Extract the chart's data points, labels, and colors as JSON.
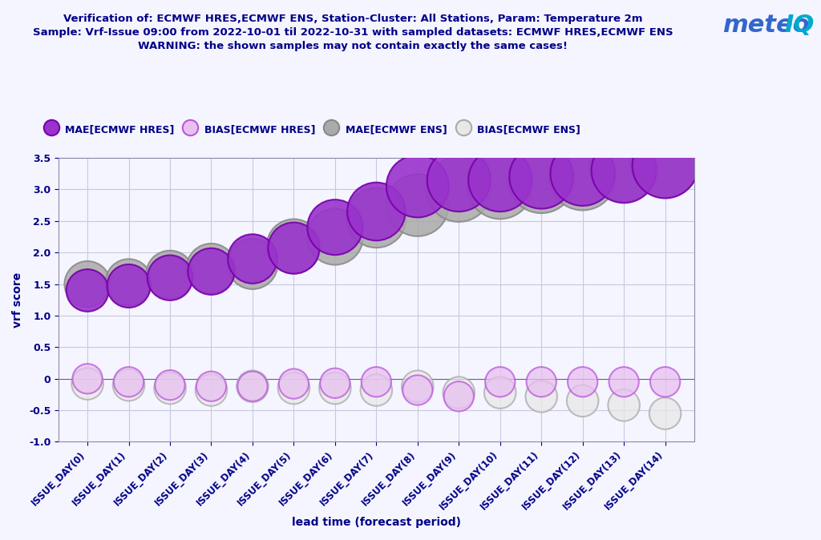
{
  "title_line1": "Verification of: ECMWF HRES,ECMWF ENS, Station-Cluster: All Stations, Param: Temperature 2m",
  "title_line2": "Sample: Vrf-Issue 09:00 from 2022-10-01 til 2022-10-31 with sampled datasets: ECMWF HRES,ECMWF ENS",
  "title_line3": "WARNING: the shown samples may not contain exactly the same cases!",
  "xlabel": "lead time (forecast period)",
  "ylabel": "vrf score",
  "x_labels": [
    "ISSUE_DAY(0)",
    "ISSUE_DAY(1)",
    "ISSUE_DAY(2)",
    "ISSUE_DAY(3)",
    "ISSUE_DAY(4)",
    "ISSUE_DAY(5)",
    "ISSUE_DAY(6)",
    "ISSUE_DAY(7)",
    "ISSUE_DAY(8)",
    "ISSUE_DAY(9)",
    "ISSUE_DAY(10)",
    "ISSUE_DAY(11)",
    "ISSUE_DAY(12)",
    "ISSUE_DAY(13)",
    "ISSUE_DAY(14)"
  ],
  "ylim": [
    -1.0,
    3.5
  ],
  "yticks": [
    -1.0,
    -0.5,
    0.0,
    0.5,
    1.0,
    1.5,
    2.0,
    2.5,
    3.0,
    3.5
  ],
  "mae_hres": [
    1.4,
    1.47,
    1.6,
    1.7,
    1.9,
    2.07,
    2.4,
    2.65,
    3.05,
    3.15,
    3.15,
    3.2,
    3.25,
    3.3,
    3.38
  ],
  "mae_ens": [
    1.5,
    1.53,
    1.65,
    1.75,
    1.82,
    2.1,
    2.25,
    2.55,
    2.75,
    3.0,
    3.05,
    3.15,
    3.2,
    3.35,
    3.42
  ],
  "bias_hres": [
    0.0,
    -0.05,
    -0.1,
    -0.12,
    -0.12,
    -0.08,
    -0.07,
    -0.05,
    -0.18,
    -0.28,
    -0.05,
    -0.05,
    -0.05,
    -0.05,
    -0.05
  ],
  "bias_ens": [
    -0.08,
    -0.1,
    -0.15,
    -0.18,
    -0.12,
    -0.15,
    -0.15,
    -0.18,
    -0.12,
    -0.22,
    -0.22,
    -0.28,
    -0.35,
    -0.42,
    -0.55
  ],
  "color_mae_hres": "#9933CC",
  "color_mae_hres_edge": "#7700AA",
  "color_bias_hres_face": "#E8C0F0",
  "color_bias_hres_edge": "#BB55DD",
  "color_mae_ens": "#AAAAAA",
  "color_mae_ens_edge": "#888888",
  "color_bias_ens_face": "#E8E8E8",
  "color_bias_ens_edge": "#AAAAAA",
  "background_color": "#F5F5FF",
  "grid_color": "#C8C8E0",
  "title_color": "#000088",
  "axis_color": "#000088",
  "logo_color_meteo": "#3366CC",
  "logo_color_IQ": "#00AACC"
}
